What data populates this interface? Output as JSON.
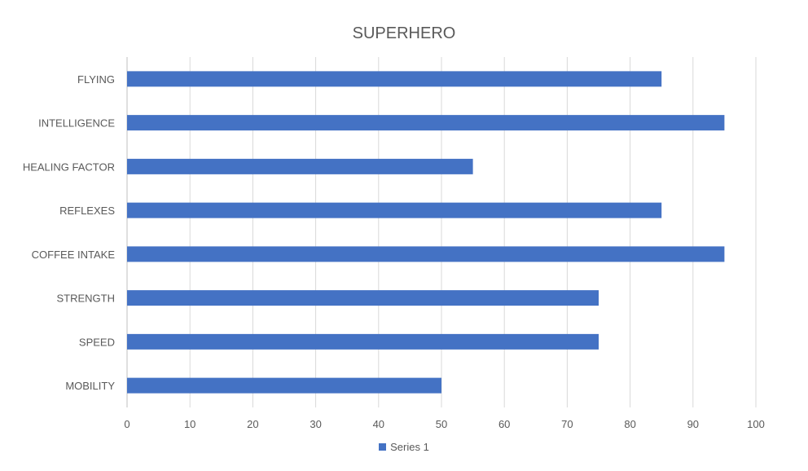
{
  "chart_data": {
    "type": "bar",
    "orientation": "horizontal",
    "title": "SUPERHERO",
    "categories": [
      "MOBILITY",
      "SPEED",
      "STRENGTH",
      "COFFEE INTAKE",
      "REFLEXES",
      "HEALING FACTOR",
      "INTELLIGENCE",
      "FLYING"
    ],
    "series": [
      {
        "name": "Series 1",
        "values": [
          50,
          75,
          75,
          95,
          85,
          55,
          95,
          85
        ],
        "color": "#4472C4"
      }
    ],
    "xlim": [
      0,
      100
    ],
    "xticks": [
      "0",
      "10",
      "20",
      "30",
      "40",
      "50",
      "60",
      "70",
      "80",
      "90",
      "100"
    ],
    "grid": true,
    "legend_position": "bottom"
  }
}
